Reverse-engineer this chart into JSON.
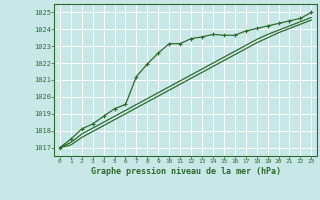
{
  "background_color": "#c8e8e8",
  "grid_color": "#ffffff",
  "line_color": "#2d6a2d",
  "title": "Graphe pression niveau de la mer (hPa)",
  "xlim": [
    -0.5,
    23.5
  ],
  "ylim": [
    1016.5,
    1025.5
  ],
  "yticks": [
    1017,
    1018,
    1019,
    1020,
    1021,
    1022,
    1023,
    1024,
    1025
  ],
  "xticks": [
    0,
    1,
    2,
    3,
    4,
    5,
    6,
    7,
    8,
    9,
    10,
    11,
    12,
    13,
    14,
    15,
    16,
    17,
    18,
    19,
    20,
    21,
    22,
    23
  ],
  "series1_x": [
    0,
    1,
    2,
    3,
    4,
    5,
    6,
    7,
    8,
    9,
    10,
    11,
    12,
    13,
    14,
    15,
    16,
    17,
    18,
    19,
    20,
    21,
    22,
    23
  ],
  "series1_y": [
    1017.0,
    1017.5,
    1018.1,
    1018.4,
    1018.85,
    1019.3,
    1019.55,
    1021.2,
    1021.95,
    1022.6,
    1023.15,
    1023.15,
    1023.45,
    1023.55,
    1023.7,
    1023.65,
    1023.65,
    1023.9,
    1024.05,
    1024.2,
    1024.35,
    1024.5,
    1024.65,
    1025.0
  ],
  "series2_x": [
    0,
    1,
    2,
    3,
    4,
    5,
    6,
    7,
    8,
    9,
    10,
    11,
    12,
    13,
    14,
    15,
    16,
    17,
    18,
    19,
    20,
    21,
    22,
    23
  ],
  "series2_y": [
    1017.0,
    1017.3,
    1017.8,
    1018.15,
    1018.5,
    1018.85,
    1019.2,
    1019.55,
    1019.9,
    1020.25,
    1020.6,
    1020.95,
    1021.3,
    1021.65,
    1022.0,
    1022.35,
    1022.7,
    1023.05,
    1023.4,
    1023.7,
    1023.95,
    1024.2,
    1024.45,
    1024.7
  ],
  "series3_x": [
    0,
    1,
    2,
    3,
    4,
    5,
    6,
    7,
    8,
    9,
    10,
    11,
    12,
    13,
    14,
    15,
    16,
    17,
    18,
    19,
    20,
    21,
    22,
    23
  ],
  "series3_y": [
    1017.0,
    1017.15,
    1017.6,
    1017.95,
    1018.3,
    1018.65,
    1019.0,
    1019.35,
    1019.7,
    1020.05,
    1020.4,
    1020.75,
    1021.1,
    1021.45,
    1021.8,
    1022.15,
    1022.5,
    1022.85,
    1023.2,
    1023.5,
    1023.8,
    1024.05,
    1024.3,
    1024.55
  ]
}
